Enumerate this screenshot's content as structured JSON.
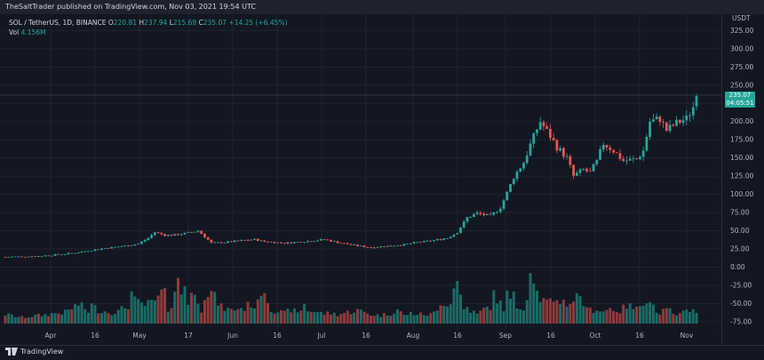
{
  "header": {
    "text": "TheSaltTrader published on TradingView.com, Nov 03, 2021 19:54 UTC"
  },
  "legend": {
    "symbol": "SOL / TetherUS, 1D, BINANCE",
    "o_label": "O",
    "o_value": "220.81",
    "h_label": "H",
    "h_value": "237.94",
    "l_label": "L",
    "l_value": "215.69",
    "c_label": "C",
    "c_value": "235.07",
    "change": "+14.25 (+6.45%)",
    "vol_label": "Vol",
    "vol_value": "4.156M"
  },
  "price_tag": {
    "price": "235.07",
    "countdown": "04:05:51"
  },
  "footer": {
    "brand": "TradingView"
  },
  "colors": {
    "up": "#26a69a",
    "down": "#ef5350",
    "up_vol": "#1c6b65",
    "down_vol": "#8f3a3b",
    "grid": "#1f2330"
  },
  "chart_data": {
    "type": "candlestick",
    "title": "SOL / TetherUS, 1D, BINANCE",
    "currency": "USDT",
    "yticks": [
      "325.00",
      "300.00",
      "275.00",
      "250.00",
      "225.00",
      "200.00",
      "175.00",
      "150.00",
      "125.00",
      "100.00",
      "75.00",
      "50.00",
      "25.00",
      "0.00",
      "-25.00",
      "-50.00",
      "-75.00"
    ],
    "ylim": [
      -80,
      335
    ],
    "xticks": [
      "Apr",
      "16",
      "May",
      "17",
      "Jun",
      "16",
      "Jul",
      "16",
      "Aug",
      "16",
      "Sep",
      "16",
      "Oct",
      "16",
      "Nov"
    ],
    "close_path": [
      [
        0,
        14
      ],
      [
        10,
        15
      ],
      [
        20,
        19
      ],
      [
        30,
        26
      ],
      [
        36,
        29
      ],
      [
        40,
        32
      ],
      [
        43,
        40
      ],
      [
        45,
        48
      ],
      [
        48,
        44
      ],
      [
        51,
        44
      ],
      [
        55,
        47
      ],
      [
        58,
        50
      ],
      [
        60,
        42
      ],
      [
        62,
        33
      ],
      [
        66,
        34
      ],
      [
        70,
        36
      ],
      [
        75,
        38
      ],
      [
        78,
        35
      ],
      [
        84,
        33
      ],
      [
        90,
        35
      ],
      [
        96,
        38
      ],
      [
        100,
        34
      ],
      [
        105,
        30
      ],
      [
        110,
        27
      ],
      [
        115,
        29
      ],
      [
        120,
        31
      ],
      [
        124,
        34
      ],
      [
        128,
        36
      ],
      [
        133,
        40
      ],
      [
        136,
        48
      ],
      [
        139,
        68
      ],
      [
        142,
        74
      ],
      [
        146,
        70
      ],
      [
        149,
        82
      ],
      [
        151,
        102
      ],
      [
        153,
        124
      ],
      [
        156,
        144
      ],
      [
        158,
        168
      ],
      [
        160,
        190
      ],
      [
        161,
        200
      ],
      [
        164,
        180
      ],
      [
        166,
        165
      ],
      [
        169,
        150
      ],
      [
        171,
        125
      ],
      [
        174,
        134
      ],
      [
        176,
        130
      ],
      [
        178,
        145
      ],
      [
        180,
        170
      ],
      [
        183,
        160
      ],
      [
        186,
        146
      ],
      [
        190,
        148
      ],
      [
        192,
        160
      ],
      [
        194,
        200
      ],
      [
        197,
        204
      ],
      [
        199,
        188
      ],
      [
        202,
        198
      ],
      [
        205,
        204
      ],
      [
        207,
        220
      ],
      [
        208,
        235.07
      ]
    ],
    "volume_path": [
      [
        0,
        9
      ],
      [
        5,
        6
      ],
      [
        10,
        8
      ],
      [
        15,
        10
      ],
      [
        18,
        11
      ],
      [
        20,
        15
      ],
      [
        22,
        19
      ],
      [
        25,
        12
      ],
      [
        26,
        18
      ],
      [
        28,
        13
      ],
      [
        30,
        12
      ],
      [
        32,
        11
      ],
      [
        34,
        12
      ],
      [
        36,
        16
      ],
      [
        37,
        18
      ],
      [
        38,
        30
      ],
      [
        39,
        22
      ],
      [
        40,
        20
      ],
      [
        42,
        18
      ],
      [
        44,
        20
      ],
      [
        46,
        24
      ],
      [
        47,
        30
      ],
      [
        48,
        28
      ],
      [
        49,
        14
      ],
      [
        50,
        20
      ],
      [
        51,
        33
      ],
      [
        52,
        40
      ],
      [
        53,
        30
      ],
      [
        54,
        38
      ],
      [
        55,
        22
      ],
      [
        56,
        30
      ],
      [
        57,
        25
      ],
      [
        58,
        24
      ],
      [
        59,
        14
      ],
      [
        60,
        30
      ],
      [
        62,
        30
      ],
      [
        65,
        16
      ],
      [
        68,
        13
      ],
      [
        70,
        15
      ],
      [
        72,
        15
      ],
      [
        74,
        20
      ],
      [
        75,
        17
      ],
      [
        76,
        19
      ],
      [
        77,
        35
      ],
      [
        78,
        33
      ],
      [
        80,
        14
      ],
      [
        82,
        12
      ],
      [
        84,
        10
      ],
      [
        86,
        14
      ],
      [
        88,
        10
      ],
      [
        89,
        14
      ],
      [
        90,
        19
      ],
      [
        91,
        13
      ],
      [
        93,
        12
      ],
      [
        95,
        10
      ],
      [
        98,
        10
      ],
      [
        100,
        9
      ],
      [
        103,
        11
      ],
      [
        106,
        13
      ],
      [
        110,
        9
      ],
      [
        113,
        8
      ],
      [
        116,
        10
      ],
      [
        118,
        14
      ],
      [
        120,
        8
      ],
      [
        122,
        10
      ],
      [
        125,
        9
      ],
      [
        128,
        9
      ],
      [
        130,
        12
      ],
      [
        131,
        22
      ],
      [
        134,
        19
      ],
      [
        135,
        41
      ],
      [
        136,
        40
      ],
      [
        138,
        14
      ],
      [
        139,
        16
      ],
      [
        140,
        13
      ],
      [
        142,
        9
      ],
      [
        144,
        14
      ],
      [
        146,
        17
      ],
      [
        147,
        27
      ],
      [
        148,
        24
      ],
      [
        150,
        15
      ],
      [
        151,
        28
      ],
      [
        152,
        23
      ],
      [
        153,
        26
      ],
      [
        154,
        16
      ],
      [
        156,
        17
      ],
      [
        157,
        24
      ],
      [
        158,
        60
      ],
      [
        159,
        50
      ],
      [
        160,
        30
      ],
      [
        161,
        25
      ],
      [
        162,
        22
      ],
      [
        165,
        19
      ],
      [
        166,
        25
      ],
      [
        168,
        21
      ],
      [
        170,
        20
      ],
      [
        171,
        24
      ],
      [
        173,
        28
      ],
      [
        175,
        13
      ],
      [
        178,
        14
      ],
      [
        180,
        12
      ],
      [
        182,
        15
      ],
      [
        185,
        12
      ],
      [
        187,
        18
      ],
      [
        190,
        14
      ],
      [
        192,
        23
      ],
      [
        194,
        25
      ],
      [
        196,
        10
      ],
      [
        198,
        12
      ],
      [
        200,
        13
      ],
      [
        202,
        7
      ],
      [
        205,
        12
      ],
      [
        207,
        18
      ],
      [
        208,
        10
      ]
    ]
  }
}
